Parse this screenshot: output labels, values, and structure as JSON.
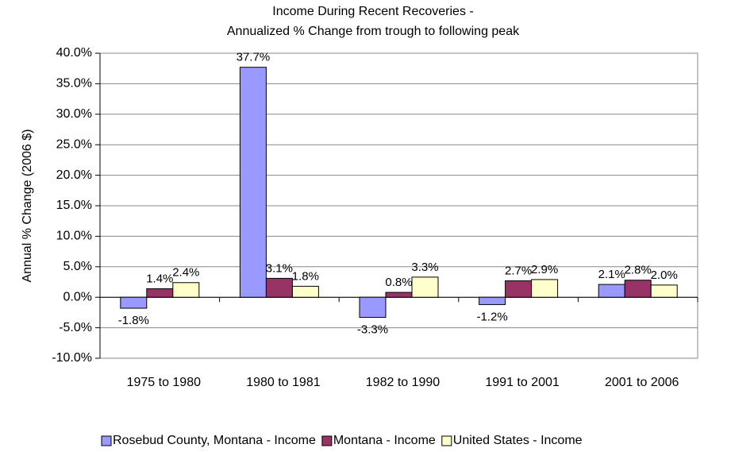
{
  "chart_data": {
    "type": "bar",
    "title": "Income During Recent Recoveries -",
    "subtitle": "Annualized % Change from trough to following peak",
    "y_label": "Annual % Change (2006 $)",
    "categories": [
      "1975 to 1980",
      "1980 to 1981",
      "1982 to 1990",
      "1991 to 2001",
      "2001 to 2006"
    ],
    "series": [
      {
        "name": "Rosebud County, Montana - Income",
        "color": "#9999ff",
        "values": [
          -1.8,
          37.7,
          -3.3,
          -1.2,
          2.1
        ],
        "value_labels": [
          "-1.8%",
          "37.7%",
          "-3.3%",
          "-1.2%",
          "2.1%"
        ]
      },
      {
        "name": "Montana - Income",
        "color": "#993366",
        "values": [
          1.4,
          3.1,
          0.8,
          2.7,
          2.8
        ],
        "value_labels": [
          "1.4%",
          "3.1%",
          "0.8%",
          "2.7%",
          "2.8%"
        ]
      },
      {
        "name": "United States - Income",
        "color": "#ffffcc",
        "values": [
          2.4,
          1.8,
          3.3,
          2.9,
          2.0
        ],
        "value_labels": [
          "2.4%",
          "1.8%",
          "3.3%",
          "2.9%",
          "2.0%"
        ]
      }
    ],
    "ylim": [
      -10,
      40
    ],
    "yticks": [
      {
        "value": -10,
        "label": "-10.0%"
      },
      {
        "value": -5,
        "label": "-5.0%"
      },
      {
        "value": 0,
        "label": "0.0%"
      },
      {
        "value": 5,
        "label": "5.0%"
      },
      {
        "value": 10,
        "label": "10.0%"
      },
      {
        "value": 15,
        "label": "15.0%"
      },
      {
        "value": 20,
        "label": "20.0%"
      },
      {
        "value": 25,
        "label": "25.0%"
      },
      {
        "value": 30,
        "label": "30.0%"
      },
      {
        "value": 35,
        "label": "35.0%"
      },
      {
        "value": 40,
        "label": "40.0%"
      }
    ],
    "grid": true,
    "legend": "bottom"
  }
}
